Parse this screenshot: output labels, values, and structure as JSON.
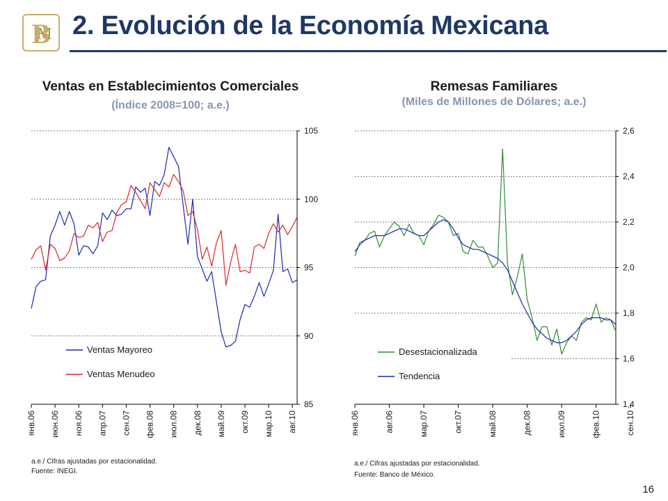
{
  "header": {
    "title": "2. Evolución de la Economía Mexicana",
    "page_number": "16"
  },
  "colors": {
    "title": "#1f3864",
    "subtitle": "#8496b0",
    "series_blue": "#1a28b4",
    "series_red": "#d62828",
    "series_green": "#2e8b2e",
    "logo_gold": "#c7ad6e"
  },
  "left_panel": {
    "title": "Ventas en Establecimientos Comerciales",
    "subtitle": "(Índice 2008=100; a.e.)",
    "notes": [
      "a.e./ Cifras ajustadas por estacionalidad.",
      "Fuente: INEGI."
    ]
  },
  "right_panel": {
    "title": "Remesas Familiares",
    "subtitle": "(Miles de Millones de Dólares; a.e.)",
    "notes": [
      "a.e./ Cifras ajustadas por estacionalidad.",
      "Fuente: Banco de México."
    ]
  },
  "chart_data": [
    {
      "type": "line",
      "title": "Ventas en Establecimientos Comerciales",
      "ylim": [
        85,
        105
      ],
      "yticks": [
        85,
        90,
        95,
        100,
        105
      ],
      "y_axis_side": "right",
      "grid": "horizontal dashed",
      "legend_position": "bottom-left",
      "x_tick_labels": [
        "янв.06",
        "июн.06",
        "ноя.06",
        "апр.07",
        "сен.07",
        "фев.08",
        "июл.08",
        "дек.08",
        "май.09",
        "окт.09",
        "мар.10",
        "авг.10"
      ],
      "x_tick_step": 5,
      "series": [
        {
          "name": "Ventas Mayoreo",
          "color": "#1a28b4",
          "values": [
            92,
            93.6,
            94,
            94.1,
            97.3,
            98.1,
            99.1,
            98.1,
            99.1,
            98.2,
            95.9,
            96.6,
            96.5,
            96.0,
            96.6,
            99.0,
            98.5,
            99.2,
            98.8,
            98.9,
            99.3,
            99.3,
            100.9,
            100.5,
            100.8,
            98.8,
            101.3,
            101.0,
            101.8,
            103.8,
            103.1,
            102.4,
            99.5,
            96.7,
            100.0,
            95.8,
            94.9,
            94.0,
            94.7,
            92.5,
            90.3,
            89.2,
            89.3,
            89.6,
            91.2,
            92.3,
            92.1,
            92.9,
            93.9,
            92.9,
            93.8,
            94.8,
            98.9,
            94.7,
            94.9,
            93.9,
            94.1
          ]
        },
        {
          "name": "Ventas Menudeo",
          "color": "#d62828",
          "values": [
            95.6,
            96.3,
            96.6,
            94.8,
            96.7,
            96.4,
            95.5,
            95.7,
            96.2,
            97.5,
            97.2,
            97.3,
            98.1,
            97.9,
            98.3,
            96.9,
            97.6,
            97.7,
            99.0,
            99.6,
            99.8,
            101.0,
            100.5,
            99.9,
            99.3,
            101.2,
            100.7,
            100.2,
            101.2,
            100.9,
            101.8,
            101.3,
            100.6,
            98.8,
            99.1,
            97.8,
            95.6,
            96.5,
            95.1,
            96.8,
            97.7,
            93.7,
            95.4,
            96.7,
            94.7,
            94.8,
            94.6,
            96.5,
            96.7,
            96.4,
            97.5,
            98.2,
            97.6,
            98.1,
            97.4,
            98.0,
            98.7
          ]
        }
      ]
    },
    {
      "type": "line",
      "title": "Remesas Familiares",
      "ylim": [
        1.4,
        2.6
      ],
      "yticks": [
        "1,4",
        "1,6",
        "1,8",
        "2,0",
        "2,2",
        "2,4",
        "2,6"
      ],
      "y_axis_side": "right",
      "grid": "horizontal dashed",
      "legend_position": "bottom-left",
      "x_tick_labels": [
        "янв.06",
        "авг.06",
        "мар.07",
        "окт.07",
        "май.08",
        "дек.08",
        "июл.09",
        "фев.10",
        "сен.10"
      ],
      "x_tick_step": 7,
      "series": [
        {
          "name": "Desestacionalizada",
          "color": "#2e8b2e",
          "values": [
            2.05,
            2.11,
            2.12,
            2.15,
            2.16,
            2.09,
            2.14,
            2.17,
            2.2,
            2.18,
            2.14,
            2.19,
            2.15,
            2.14,
            2.1,
            2.16,
            2.19,
            2.23,
            2.22,
            2.2,
            2.14,
            2.15,
            2.07,
            2.06,
            2.12,
            2.09,
            2.09,
            2.05,
            2.0,
            2.02,
            2.52,
            2.02,
            1.88,
            1.96,
            2.06,
            1.86,
            1.78,
            1.68,
            1.74,
            1.74,
            1.66,
            1.73,
            1.62,
            1.67,
            1.7,
            1.68,
            1.76,
            1.78,
            1.77,
            1.84,
            1.76,
            1.78,
            1.77,
            1.72
          ]
        },
        {
          "name": "Tendencia",
          "color": "#1a28b4",
          "values": [
            2.07,
            2.1,
            2.12,
            2.13,
            2.14,
            2.14,
            2.14,
            2.15,
            2.16,
            2.17,
            2.17,
            2.16,
            2.15,
            2.14,
            2.14,
            2.16,
            2.18,
            2.2,
            2.21,
            2.2,
            2.17,
            2.13,
            2.1,
            2.09,
            2.08,
            2.08,
            2.07,
            2.06,
            2.05,
            2.04,
            2.02,
            1.99,
            1.94,
            1.89,
            1.84,
            1.8,
            1.76,
            1.73,
            1.71,
            1.69,
            1.68,
            1.67,
            1.67,
            1.68,
            1.7,
            1.72,
            1.75,
            1.77,
            1.78,
            1.78,
            1.78,
            1.77,
            1.77,
            1.75
          ]
        }
      ]
    }
  ]
}
